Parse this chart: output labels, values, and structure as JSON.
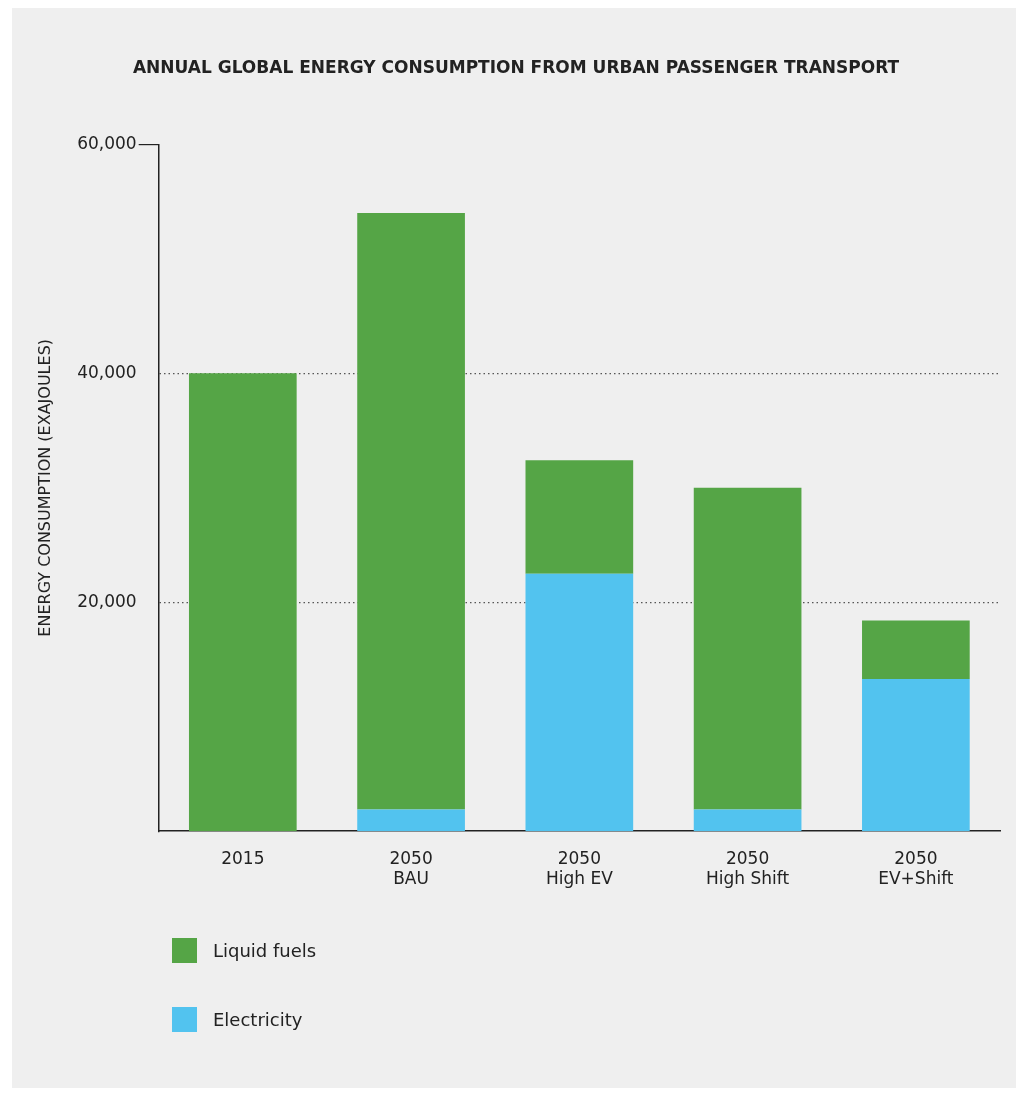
{
  "chart_data": {
    "type": "bar",
    "title": "ANNUAL GLOBAL ENERGY CONSUMPTION FROM URBAN PASSENGER TRANSPORT",
    "ylabel": "ENERGY CONSUMPTION (EXAJOULES)",
    "categories": [
      "2015",
      "2050\nBAU",
      "2050\nHigh EV",
      "2050\nHigh Shift",
      "2050\nEV+Shift"
    ],
    "stacked": true,
    "series": [
      {
        "name": "Electricity",
        "color": "#52c3ef",
        "values": [
          0,
          1900,
          22500,
          1900,
          13300
        ]
      },
      {
        "name": "Liquid fuels",
        "color": "#55a546",
        "values": [
          40000,
          52100,
          9900,
          28100,
          5100
        ]
      }
    ],
    "ylim": [
      0,
      60000
    ],
    "yticks": [
      {
        "value": 20000,
        "label": "20,000"
      },
      {
        "value": 40000,
        "label": "40,000"
      },
      {
        "value": 60000,
        "label": "60,000"
      }
    ],
    "grid": "y",
    "legend": "bottom left"
  }
}
